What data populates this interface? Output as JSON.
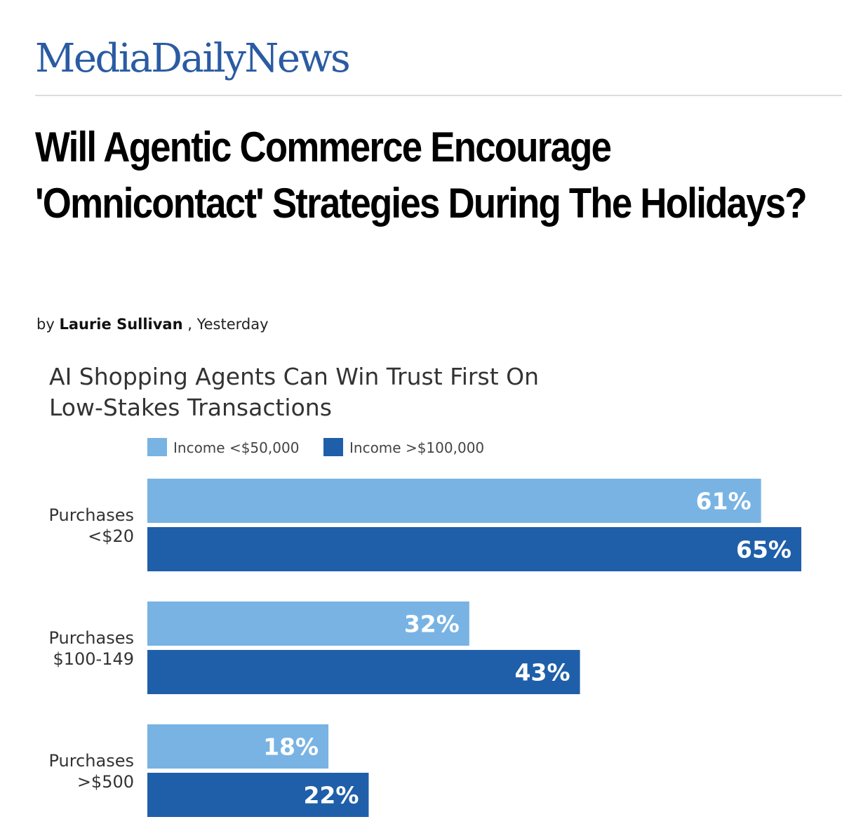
{
  "site": {
    "masthead": "MediaDailyNews"
  },
  "article": {
    "headline": "Will Agentic Commerce Encourage 'Omnicontact' Strategies During The Holidays?",
    "byline_prefix": "by",
    "author": "Laurie Sullivan",
    "byline_suffix": ", Yesterday"
  },
  "colors": {
    "masthead": "#2a5ba3",
    "series_low_income": "#78b3e3",
    "series_high_income": "#1f5faa"
  },
  "chart_data": {
    "type": "bar",
    "orientation": "horizontal",
    "title_lines": [
      "AI Shopping Agents Can Win Trust First On",
      "Low-Stakes Transactions"
    ],
    "legend_position": "top",
    "grid": false,
    "unit": "%",
    "xlim": [
      0,
      65
    ],
    "categories": [
      [
        "Purchases",
        "<$20"
      ],
      [
        "Purchases",
        "$100-149"
      ],
      [
        "Purchases",
        ">$500"
      ]
    ],
    "series": [
      {
        "name": "Income <$50,000",
        "color": "#78b3e3",
        "values": [
          61,
          32,
          18
        ]
      },
      {
        "name": "Income >$100,000",
        "color": "#1f5faa",
        "values": [
          65,
          43,
          22
        ]
      }
    ]
  }
}
